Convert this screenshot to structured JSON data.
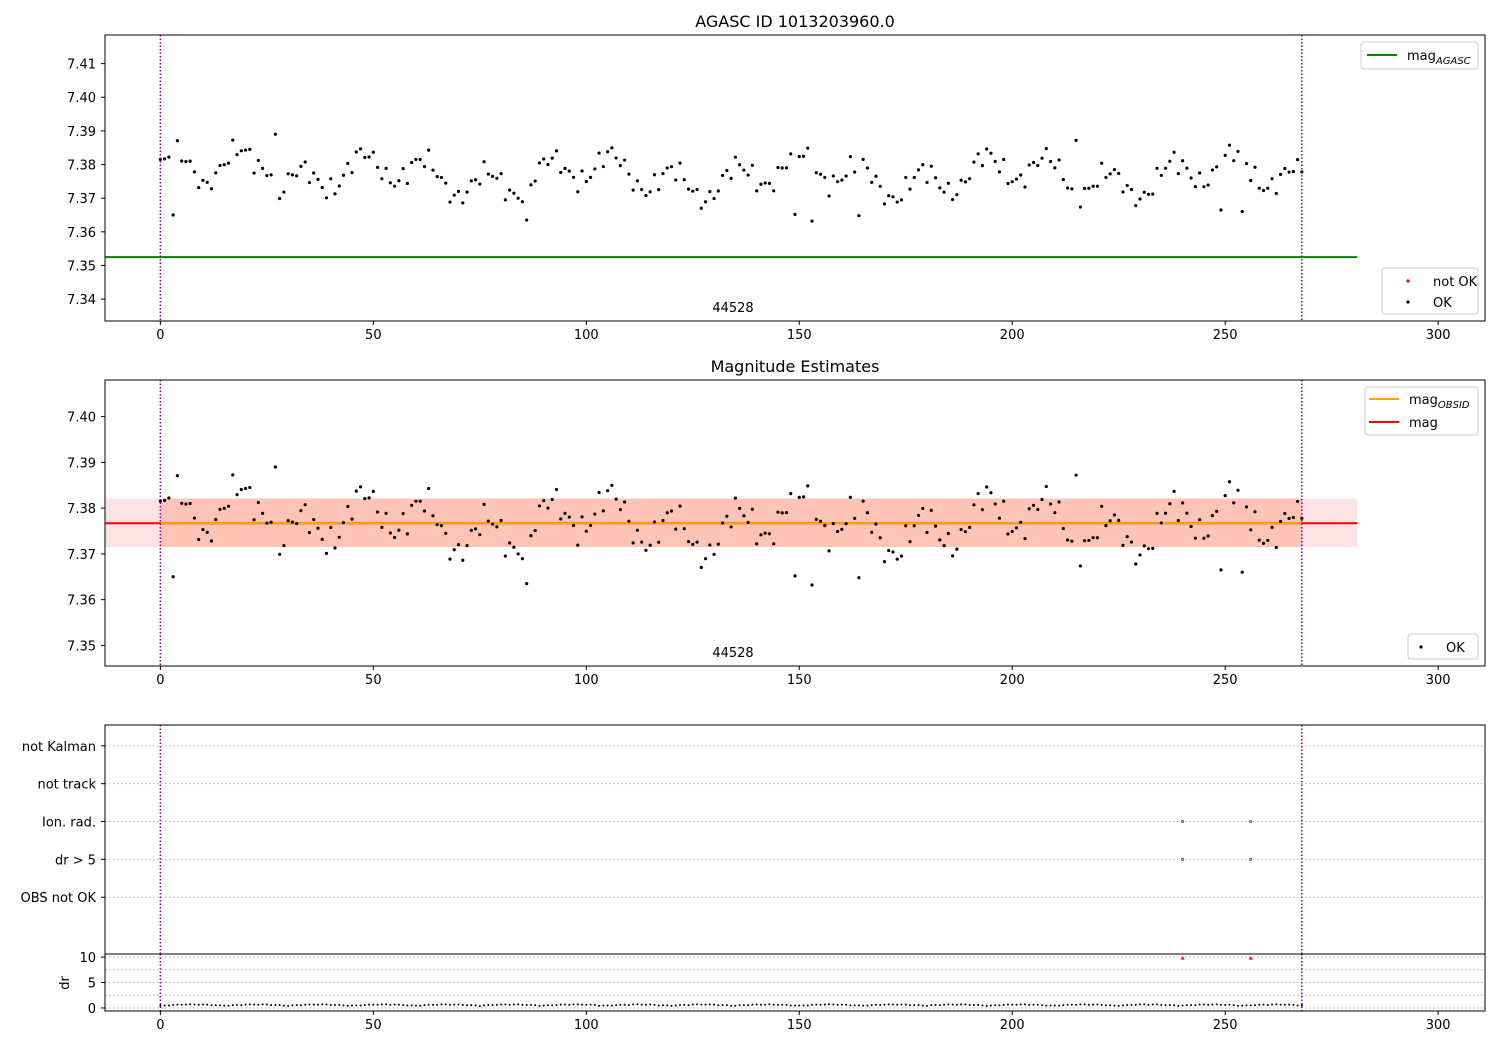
{
  "chart_data": [
    {
      "type": "scatter",
      "title": "AGASC ID 1013203960.0",
      "xlim": [
        -13,
        311
      ],
      "ylim": [
        7.3335,
        7.4185
      ],
      "xticks": [
        0,
        50,
        100,
        150,
        200,
        250,
        300
      ],
      "yticks": [
        7.34,
        7.35,
        7.36,
        7.37,
        7.38,
        7.39,
        7.4,
        7.41
      ],
      "ytick_labels": [
        "7.34",
        "7.35",
        "7.36",
        "7.37",
        "7.38",
        "7.39",
        "7.40",
        "7.41"
      ],
      "vlines": [
        0,
        268
      ],
      "reference_line": {
        "name_main": "mag",
        "name_sub": "AGASC",
        "value": 7.3525,
        "x_range": [
          -13,
          281
        ],
        "color": "#008000"
      },
      "obsid_label": {
        "text": "44528",
        "x": 134,
        "y": 7.3365
      },
      "legend": {
        "upper_right": [
          {
            "label_main": "mag",
            "label_sub": "AGASC",
            "color": "#008000",
            "kind": "line"
          }
        ],
        "lower_right": [
          {
            "label": "not OK",
            "color": "#ff0000",
            "kind": "point"
          },
          {
            "label": "OK",
            "color": "#000000",
            "kind": "point"
          }
        ]
      },
      "grid": false
    },
    {
      "type": "scatter",
      "title": "Magnitude Estimates",
      "xlim": [
        -13,
        311
      ],
      "ylim": [
        7.3455,
        7.408
      ],
      "xticks": [
        0,
        50,
        100,
        150,
        200,
        250,
        300
      ],
      "yticks": [
        7.35,
        7.36,
        7.37,
        7.38,
        7.39,
        7.4
      ],
      "ytick_labels": [
        "7.35",
        "7.36",
        "7.37",
        "7.38",
        "7.39",
        "7.40"
      ],
      "vlines": [
        0,
        268
      ],
      "bands": [
        {
          "y0": 7.3715,
          "y1": 7.3821,
          "x_range": [
            -13,
            281
          ],
          "color": "#ffb6c1",
          "opacity": 0.4
        },
        {
          "y0": 7.3715,
          "y1": 7.3821,
          "x_range": [
            0,
            268
          ],
          "color": "#ffa07a",
          "opacity": 0.45
        }
      ],
      "lines": [
        {
          "name": "mag",
          "value": 7.3767,
          "x_range": [
            -13,
            281
          ],
          "color": "#ff0000"
        },
        {
          "name_main": "mag",
          "name_sub": "OBSID",
          "value": 7.3767,
          "x_range": [
            0,
            268
          ],
          "color": "#ffa500"
        }
      ],
      "obsid_label": {
        "text": "44528",
        "x": 134,
        "y": 7.3475
      },
      "legend": {
        "upper_right": [
          {
            "label_main": "mag",
            "label_sub": "OBSID",
            "color": "#ffa500",
            "kind": "line"
          },
          {
            "label": "mag",
            "color": "#ff0000",
            "kind": "line"
          }
        ],
        "lower_right": [
          {
            "label": "OK",
            "color": "#000000",
            "kind": "point"
          }
        ]
      },
      "grid": false
    },
    {
      "type": "scatter",
      "title": "",
      "xlim": [
        -13,
        311
      ],
      "ylim": [
        -0.5,
        5.55
      ],
      "y_categories": [
        "OBS not OK",
        "dr > 5",
        "Ion. rad.",
        "not track",
        "not Kalman"
      ],
      "y_category_values": [
        1,
        2,
        3,
        4,
        5
      ],
      "flags": {
        "Ion. rad.": [
          240,
          256
        ],
        "dr > 5": [
          240,
          256
        ]
      },
      "vlines": [
        0,
        268
      ],
      "grid": "horizontal dotted"
    },
    {
      "type": "scatter",
      "title": "",
      "xlim": [
        -13,
        311
      ],
      "ylim": [
        -0.6,
        10.6
      ],
      "xticks": [
        0,
        50,
        100,
        150,
        200,
        250,
        300
      ],
      "yticks": [
        0,
        5,
        10
      ],
      "ytick_labels": [
        "0",
        "5",
        "10"
      ],
      "ylabel": "dr",
      "vlines": [
        0,
        268
      ],
      "red_markers": [
        {
          "x": 240,
          "y": 9.8
        },
        {
          "x": 256,
          "y": 9.8
        }
      ],
      "grid": "horizontal dotted"
    }
  ]
}
